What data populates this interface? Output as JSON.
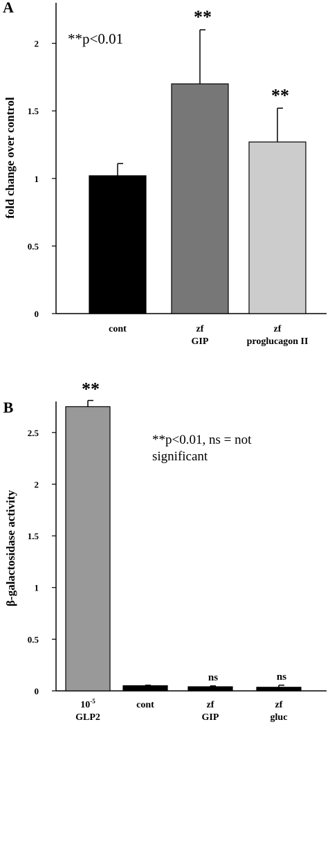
{
  "chart_data": [
    {
      "panel_label": "A",
      "type": "bar",
      "ylabel": "fold change over control",
      "ylim": [
        0,
        2.3
      ],
      "yticks": [
        "0",
        "0.5",
        "1",
        "1.5",
        "2"
      ],
      "categories": [
        {
          "lines": [
            "cont"
          ]
        },
        {
          "lines": [
            "zf",
            "GIP"
          ]
        },
        {
          "lines": [
            "zf",
            "proglucagon II"
          ]
        }
      ],
      "values": [
        1.02,
        1.7,
        1.27
      ],
      "errors": [
        0.09,
        0.4,
        0.25
      ],
      "significance": [
        "",
        "**",
        "**"
      ],
      "annotation": "**p<0.01",
      "colors": [
        "#000000",
        "#777777",
        "#cccccc"
      ]
    },
    {
      "panel_label": "B",
      "type": "bar",
      "ylabel": "β-galactosidase activity",
      "ylim": [
        0,
        2.8
      ],
      "yticks": [
        "0",
        "0.5",
        "1",
        "1.5",
        "2",
        "2.5"
      ],
      "categories": [
        {
          "lines": [
            "10-5",
            "GLP2"
          ],
          "base": "10",
          "sup": "-5"
        },
        {
          "lines": [
            "cont"
          ]
        },
        {
          "lines": [
            "zf",
            "GIP"
          ]
        },
        {
          "lines": [
            "zf",
            "gluc"
          ]
        }
      ],
      "values": [
        2.75,
        0.05,
        0.04,
        0.035
      ],
      "errors": [
        0.06,
        0.005,
        0.008,
        0.02
      ],
      "significance": [
        "**",
        "",
        "ns",
        "ns"
      ],
      "annotation_lines": [
        "**p<0.01, ns = not",
        "significant"
      ],
      "colors": [
        "#999999",
        "#000000",
        "#000000",
        "#000000"
      ]
    }
  ]
}
